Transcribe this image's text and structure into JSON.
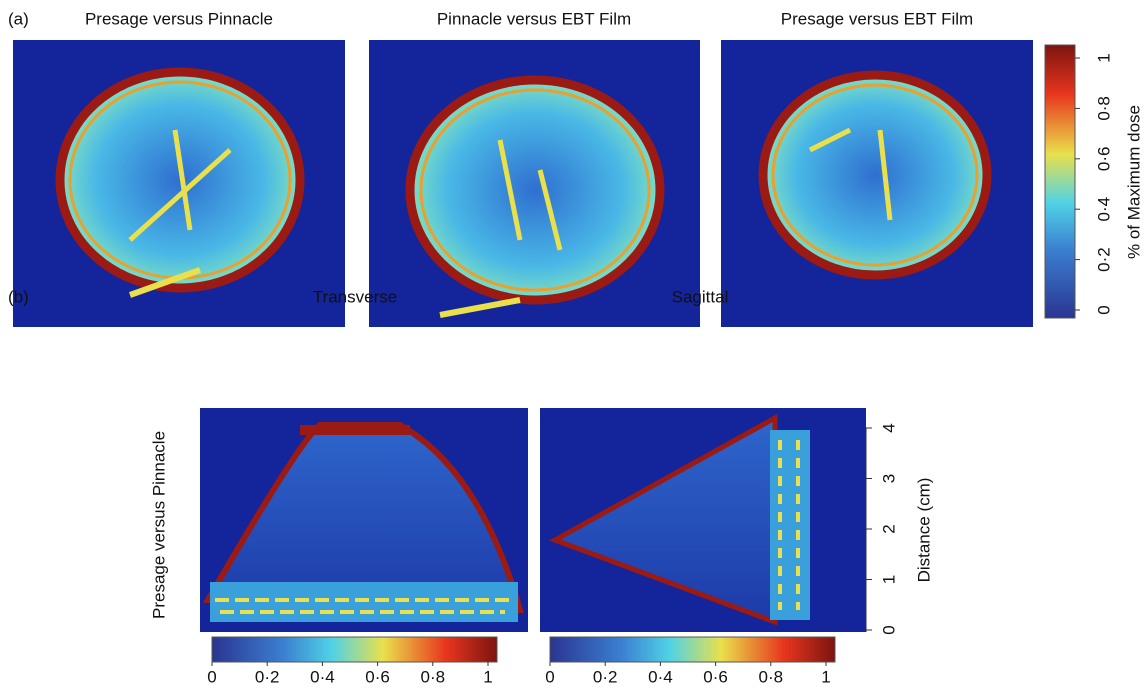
{
  "panel_a": {
    "label": "(a)",
    "titles": [
      "Presage versus Pinnacle",
      "Pinnacle versus EBT Film",
      "Presage versus EBT Film"
    ],
    "colorbar": {
      "label": "% of Maximum dose",
      "ticks": [
        0,
        {
          "value": 0.2,
          "label": "0·2"
        },
        {
          "value": 0.4,
          "label": "0·4"
        },
        {
          "value": 0.6,
          "label": "0·6"
        },
        {
          "value": 0.8,
          "label": "0·8"
        },
        1
      ]
    }
  },
  "panel_b": {
    "label": "(b)",
    "titles": [
      "Transverse",
      "Sagittal"
    ],
    "row_label": "Presage versus Pinnacle",
    "distance_axis": {
      "label": "Distance (cm)",
      "ticks": [
        0,
        1,
        2,
        3,
        4
      ]
    },
    "colorbars": [
      {
        "ticks": [
          0,
          {
            "value": 0.2,
            "label": "0·2"
          },
          {
            "value": 0.4,
            "label": "0·4"
          },
          {
            "value": 0.6,
            "label": "0·6"
          },
          {
            "value": 0.8,
            "label": "0·8"
          },
          1
        ]
      },
      {
        "ticks": [
          0,
          {
            "value": 0.2,
            "label": "0·2"
          },
          {
            "value": 0.4,
            "label": "0·4"
          },
          {
            "value": 0.6,
            "label": "0·6"
          },
          {
            "value": 0.8,
            "label": "0·8"
          },
          1
        ]
      }
    ]
  }
}
